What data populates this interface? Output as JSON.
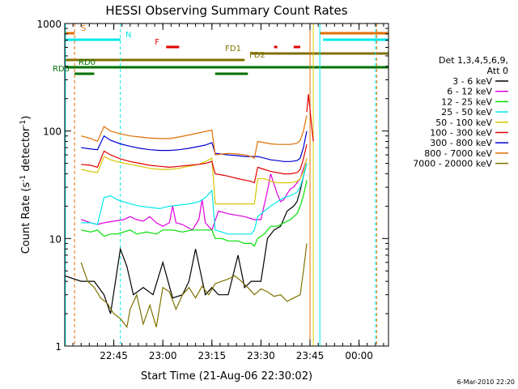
{
  "chart_data": {
    "type": "line",
    "title": "HESSI Observing Summary Count Rates",
    "xlabel": "Start Time (21-Aug-06 22:30:02)",
    "ylabel": "Count Rate (s",
    "ylabel_sup": "-1",
    "ylabel_tail": " detector",
    "ylabel_close": ")",
    "x_unit": "minutes after 22:30:02",
    "xlim": [
      0,
      99
    ],
    "ylim": [
      1,
      1000
    ],
    "yscale": "log",
    "x_ticks": [
      {
        "x": 15,
        "label": "22:45"
      },
      {
        "x": 30,
        "label": "23:00"
      },
      {
        "x": 45,
        "label": "23:15"
      },
      {
        "x": 60,
        "label": "23:30"
      },
      {
        "x": 75,
        "label": "23:45"
      },
      {
        "x": 90,
        "label": "00:00"
      }
    ],
    "y_ticks": [
      {
        "y": 1,
        "label": "1"
      },
      {
        "y": 10,
        "label": "10"
      },
      {
        "y": 100,
        "label": "100"
      },
      {
        "y": 1000,
        "label": "1000"
      }
    ],
    "legend": {
      "placement": "right",
      "header": [
        "Det 1,3,4,5,6,9,",
        "Att 0"
      ]
    },
    "series": [
      {
        "name": "3 - 6 keV",
        "color": "#000000",
        "x": [
          0,
          5,
          9,
          12,
          14,
          17,
          19,
          21,
          24,
          27,
          30,
          33,
          36,
          38,
          40,
          43,
          45,
          47,
          50,
          53,
          55,
          57,
          60,
          62,
          64,
          66,
          68,
          70,
          71,
          72,
          73,
          74
        ],
        "y": [
          4.5,
          4.0,
          4.0,
          3.0,
          2.0,
          8.0,
          5.5,
          3.0,
          3.5,
          3.0,
          6.0,
          2.8,
          3.0,
          4.0,
          8.0,
          3.0,
          3.5,
          3.0,
          3.0,
          7.0,
          3.5,
          4.0,
          4.0,
          10,
          12,
          13,
          18,
          20,
          22,
          28,
          38,
          50
        ]
      },
      {
        "name": "6 - 12 keV",
        "color": "#e000e0",
        "x": [
          5,
          8,
          10,
          12,
          15,
          18,
          20,
          22,
          24,
          26,
          28,
          30,
          32,
          33,
          34,
          36,
          39,
          41,
          42,
          43,
          45,
          47,
          50,
          55,
          58,
          60,
          62,
          63,
          64,
          65,
          66,
          67,
          68,
          69,
          70,
          71,
          72,
          73,
          74
        ],
        "y": [
          15,
          14,
          13.5,
          14,
          14.5,
          15,
          16,
          15,
          14.5,
          16,
          14,
          13,
          14,
          20,
          14,
          13.5,
          12,
          15,
          23,
          14,
          12,
          18,
          17,
          16,
          15,
          15,
          28,
          40,
          32,
          26,
          22,
          23,
          26,
          29,
          30,
          33,
          36,
          45,
          55
        ]
      },
      {
        "name": "12 - 25 keV",
        "color": "#00e000",
        "x": [
          5,
          8,
          10,
          12,
          14,
          16,
          18,
          20,
          22,
          25,
          28,
          30,
          33,
          36,
          39,
          42,
          45,
          46,
          48,
          50,
          53,
          55,
          57,
          58,
          59,
          61,
          63,
          65,
          67,
          69,
          71,
          72,
          73,
          74
        ],
        "y": [
          12,
          11.5,
          12,
          10.5,
          11,
          11,
          11.5,
          12,
          11,
          11.5,
          11,
          12,
          12,
          11.5,
          12,
          12,
          12,
          10,
          10,
          9.5,
          9.5,
          9,
          9,
          8.5,
          10,
          11,
          13,
          13,
          14,
          15,
          17,
          20,
          25,
          35
        ]
      },
      {
        "name": "25 - 50 keV",
        "color": "#00e8e8",
        "x": [
          5,
          8,
          10,
          12,
          14,
          16,
          18,
          20,
          23,
          26,
          29,
          32,
          35,
          38,
          41,
          43,
          45,
          46,
          48,
          50,
          53,
          55,
          57,
          58,
          59,
          61,
          63,
          65,
          67,
          69,
          71,
          72,
          73,
          74
        ],
        "y": [
          14,
          14,
          13.5,
          24,
          25,
          23,
          22,
          21,
          20,
          19.5,
          19,
          20,
          20.5,
          21,
          22,
          24,
          28,
          12,
          11.5,
          11,
          11,
          11,
          11,
          12,
          16,
          18,
          20,
          22,
          24,
          25,
          27,
          30,
          38,
          50
        ]
      },
      {
        "name": "50 - 100 keV",
        "color": "#d8c800",
        "x": [
          5,
          8,
          10,
          12,
          14,
          17,
          20,
          23,
          26,
          29,
          32,
          35,
          38,
          41,
          43,
          45,
          46,
          48,
          50,
          53,
          55,
          57,
          58,
          59,
          61,
          63,
          65,
          67,
          69,
          71,
          72,
          73,
          74
        ],
        "y": [
          44,
          42,
          41,
          58,
          54,
          51,
          49,
          47,
          45,
          44,
          44,
          45,
          47,
          49,
          52,
          56,
          21,
          21,
          21,
          21,
          21,
          21,
          21,
          36,
          36,
          34,
          33,
          33,
          33,
          34,
          36,
          42,
          56
        ]
      },
      {
        "name": "100 - 300 keV",
        "color": "#e00000",
        "x": [
          5,
          8,
          10,
          12,
          14,
          17,
          20,
          23,
          26,
          29,
          32,
          35,
          38,
          41,
          43,
          45,
          46,
          48,
          50,
          53,
          55,
          57,
          58,
          59,
          61,
          63,
          65,
          67,
          69,
          71,
          72,
          73,
          74
        ],
        "y": [
          49,
          48,
          46,
          65,
          60,
          55,
          52,
          50,
          48,
          47,
          46,
          47,
          48,
          49,
          50,
          52,
          40,
          39,
          38,
          36,
          35,
          34,
          33,
          46,
          44,
          42,
          41,
          40,
          40,
          41,
          44,
          55,
          75
        ]
      },
      {
        "name": "300 - 800 keV",
        "color": "#0000d0",
        "x": [
          5,
          8,
          10,
          12,
          14,
          17,
          20,
          23,
          26,
          29,
          32,
          35,
          38,
          41,
          43,
          45,
          46,
          48,
          50,
          53,
          55,
          57,
          58,
          59,
          61,
          63,
          65,
          67,
          69,
          71,
          72,
          73,
          74
        ],
        "y": [
          70,
          68,
          67,
          90,
          82,
          76,
          72,
          69,
          67,
          66,
          66,
          67,
          69,
          72,
          74,
          78,
          62,
          61,
          60,
          59,
          58,
          58,
          58,
          58,
          56,
          54,
          53,
          52,
          52,
          53,
          56,
          70,
          100
        ]
      },
      {
        "name": "800 - 7000 keV",
        "color": "#e07000",
        "x": [
          5,
          8,
          10,
          12,
          14,
          17,
          20,
          23,
          26,
          29,
          32,
          35,
          38,
          41,
          43,
          45,
          46,
          48,
          50,
          53,
          55,
          57,
          58,
          59,
          61,
          63,
          65,
          67,
          69,
          71,
          72,
          73,
          74
        ],
        "y": [
          90,
          85,
          80,
          110,
          100,
          94,
          90,
          88,
          86,
          85,
          85,
          88,
          92,
          96,
          99,
          102,
          60,
          61,
          62,
          61,
          60,
          58,
          56,
          80,
          78,
          76,
          75,
          75,
          75,
          77,
          82,
          100,
          140
        ]
      },
      {
        "name": "7000 - 20000 keV",
        "color": "#807000",
        "x": [
          5,
          7,
          9,
          11,
          13,
          15,
          17,
          19,
          20,
          22,
          24,
          26,
          28,
          30,
          32,
          34,
          36,
          38,
          40,
          42,
          44,
          46,
          48,
          50,
          52,
          54,
          56,
          58,
          60,
          62,
          64,
          66,
          68,
          70,
          72,
          73,
          74
        ],
        "y": [
          6,
          4,
          3.5,
          2.8,
          2.5,
          2,
          1.8,
          1.5,
          2.2,
          3,
          1.6,
          2.4,
          1.5,
          3.5,
          3.2,
          2.2,
          3,
          3.5,
          2.8,
          3.6,
          3,
          3.8,
          4,
          4.2,
          4.5,
          4,
          3.5,
          3,
          3.4,
          3.2,
          2.9,
          3,
          2.6,
          2.8,
          3,
          5,
          9
        ]
      },
      {
        "name": "",
        "color": "#e00000",
        "x": [
          74,
          74.5,
          75,
          75.5,
          76
        ],
        "y": [
          150,
          220,
          160,
          110,
          80
        ]
      }
    ],
    "flag_bars": [
      {
        "label": "S",
        "color": "#e07000",
        "segments": [
          [
            0,
            3
          ],
          [
            78,
            99
          ]
        ]
      },
      {
        "label": "N",
        "color": "#00e8e8",
        "segments": [
          [
            0,
            17
          ],
          [
            79,
            99
          ]
        ]
      },
      {
        "label": "F",
        "color": "#e00000",
        "segments": [
          [
            31,
            35
          ],
          [
            64,
            65
          ],
          [
            70,
            72
          ]
        ]
      },
      {
        "label": "FD1",
        "color": "#807000",
        "segments": [
          [
            57,
            99
          ]
        ]
      },
      {
        "label": "FD2",
        "color": "#807000",
        "segments": [
          [
            0,
            55
          ]
        ]
      },
      {
        "label": "RD0",
        "color": "#007000",
        "segments": [
          [
            0,
            99
          ]
        ]
      },
      {
        "label": "RD5",
        "color": "#007000",
        "segments": [
          [
            3,
            9
          ],
          [
            46,
            56
          ]
        ]
      }
    ],
    "vertical_lines": [
      {
        "x": 0.2,
        "color": "#00e8e8",
        "style": "solid"
      },
      {
        "x": 3,
        "color": "#e07000",
        "style": "dashed"
      },
      {
        "x": 17,
        "color": "#00e8e8",
        "style": "dashed"
      },
      {
        "x": 75,
        "color": "#e07000",
        "style": "solid"
      },
      {
        "x": 76,
        "color": "#d8c800",
        "style": "solid"
      },
      {
        "x": 78,
        "color": "#00e8e8",
        "style": "solid"
      },
      {
        "x": 95,
        "color": "#00e8e8",
        "style": "dashed"
      },
      {
        "x": 95.4,
        "color": "#e07000",
        "style": "dashed"
      }
    ],
    "footer": "6-Mar-2010 22:20",
    "grid": false
  }
}
